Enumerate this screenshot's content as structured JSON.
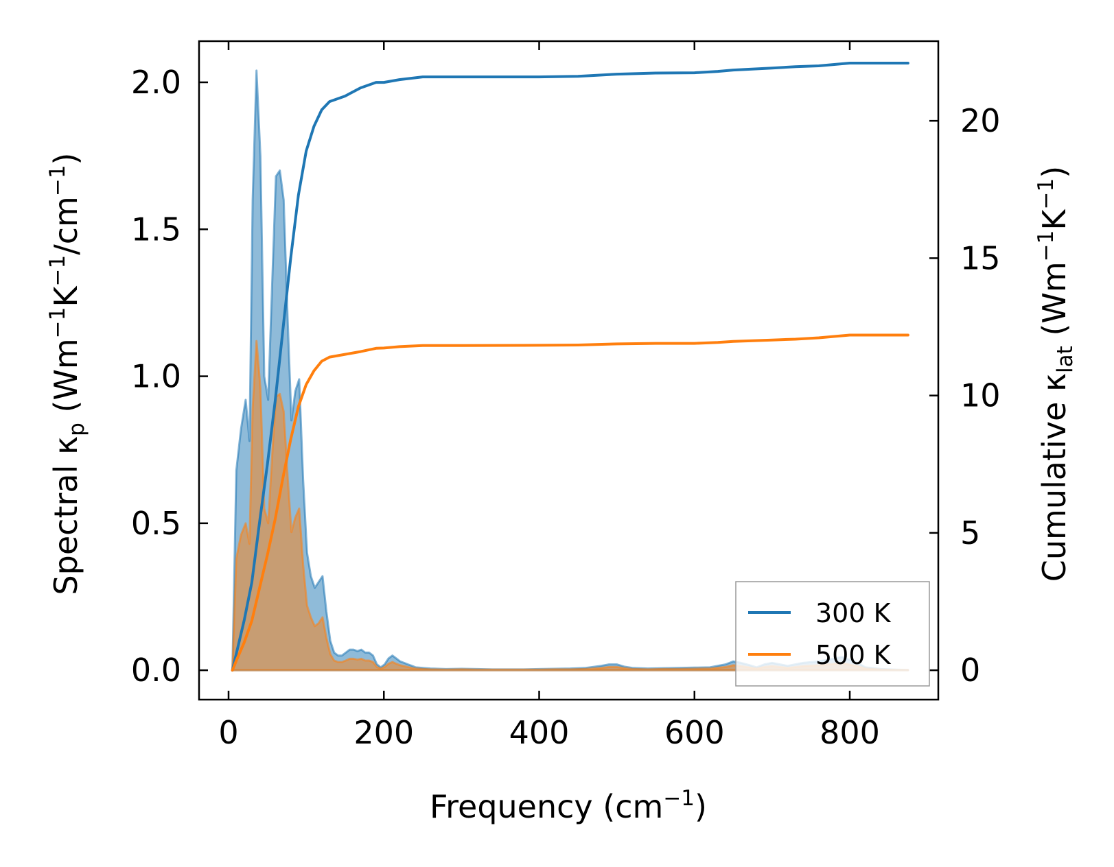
{
  "chart_data": {
    "type": "line",
    "xlabel": {
      "main": "Frequency (cm",
      "sup": "−1",
      "tail": ")"
    },
    "ylabel_left": {
      "prefix": "Spectral κ",
      "sub": "p",
      "rest": " (Wm",
      "sup1": "−1",
      "mid": "K",
      "sup2": "−1",
      "mid2": "/cm",
      "sup3": "−1",
      "tail": ")"
    },
    "ylabel_right": {
      "prefix": "Cumulative κ",
      "sub": "lat",
      "rest": " (Wm",
      "sup1": "−1",
      "mid": "K",
      "sup2": "−1",
      "tail": ")"
    },
    "xlim": [
      -38,
      914
    ],
    "ylim_left": [
      -0.1,
      2.14
    ],
    "ylim_right": [
      -1.07,
      22.9
    ],
    "x_ticks": [
      0,
      200,
      400,
      600,
      800
    ],
    "x_tick_labels": [
      "0",
      "200",
      "400",
      "600",
      "800"
    ],
    "y_left_ticks": [
      0.0,
      0.5,
      1.0,
      1.5,
      2.0
    ],
    "y_left_tick_labels": [
      "0.0",
      "0.5",
      "1.0",
      "1.5",
      "2.0"
    ],
    "y_right_ticks": [
      0,
      5,
      10,
      15,
      20
    ],
    "y_right_tick_labels": [
      "0",
      "5",
      "10",
      "15",
      "20"
    ],
    "legend": {
      "position": "lower-right",
      "entries": [
        "300 K",
        "500 K"
      ]
    },
    "colors": {
      "300 K": "#1f77b4",
      "500 K": "#ff7f0e"
    },
    "spectral": {
      "300 K": {
        "x": [
          5,
          10,
          16,
          22,
          27,
          31,
          36,
          41,
          46,
          51,
          56,
          61,
          66,
          71,
          76,
          81,
          86,
          91,
          96,
          101,
          106,
          111,
          116,
          121,
          126,
          131,
          136,
          141,
          146,
          151,
          156,
          161,
          166,
          171,
          176,
          181,
          186,
          191,
          196,
          201,
          206,
          211,
          216,
          221,
          226,
          231,
          236,
          241,
          250,
          260,
          280,
          300,
          320,
          340,
          360,
          380,
          400,
          420,
          440,
          460,
          480,
          490,
          500,
          510,
          520,
          540,
          560,
          580,
          600,
          620,
          640,
          650,
          660,
          670,
          680,
          690,
          700,
          710,
          720,
          740,
          760,
          780,
          790,
          800,
          810,
          820,
          840,
          860,
          875
        ],
        "y": [
          0.0,
          0.68,
          0.82,
          0.92,
          0.78,
          1.6,
          2.04,
          1.75,
          1.0,
          0.92,
          1.3,
          1.68,
          1.7,
          1.6,
          1.2,
          0.85,
          0.95,
          0.99,
          0.65,
          0.4,
          0.32,
          0.28,
          0.3,
          0.32,
          0.2,
          0.1,
          0.06,
          0.05,
          0.05,
          0.06,
          0.07,
          0.07,
          0.065,
          0.07,
          0.06,
          0.06,
          0.05,
          0.02,
          0.01,
          0.02,
          0.04,
          0.05,
          0.04,
          0.03,
          0.025,
          0.02,
          0.015,
          0.01,
          0.008,
          0.006,
          0.004,
          0.005,
          0.004,
          0.003,
          0.003,
          0.003,
          0.004,
          0.005,
          0.006,
          0.008,
          0.015,
          0.02,
          0.02,
          0.012,
          0.008,
          0.006,
          0.007,
          0.008,
          0.009,
          0.01,
          0.02,
          0.03,
          0.025,
          0.018,
          0.01,
          0.02,
          0.025,
          0.02,
          0.015,
          0.025,
          0.03,
          0.04,
          0.045,
          0.035,
          0.025,
          0.01,
          0.004,
          0.002,
          0.001
        ]
      },
      "500 K": {
        "x": [
          5,
          10,
          16,
          22,
          27,
          31,
          36,
          41,
          46,
          51,
          56,
          61,
          66,
          71,
          76,
          81,
          86,
          91,
          96,
          101,
          106,
          111,
          116,
          121,
          126,
          131,
          136,
          141,
          146,
          151,
          156,
          161,
          166,
          171,
          176,
          181,
          186,
          191,
          196,
          201,
          206,
          211,
          216,
          221,
          226,
          231,
          236,
          241,
          250,
          260,
          280,
          300,
          320,
          340,
          360,
          380,
          400,
          420,
          440,
          460,
          480,
          490,
          500,
          510,
          520,
          540,
          560,
          580,
          600,
          620,
          640,
          650,
          660,
          670,
          680,
          690,
          700,
          710,
          720,
          740,
          760,
          780,
          790,
          800,
          810,
          820,
          840,
          860,
          875
        ],
        "y": [
          0.0,
          0.38,
          0.46,
          0.5,
          0.43,
          0.89,
          1.12,
          0.96,
          0.55,
          0.5,
          0.72,
          0.93,
          0.94,
          0.88,
          0.66,
          0.47,
          0.52,
          0.55,
          0.36,
          0.22,
          0.18,
          0.15,
          0.16,
          0.18,
          0.11,
          0.055,
          0.033,
          0.028,
          0.028,
          0.033,
          0.039,
          0.039,
          0.036,
          0.039,
          0.033,
          0.033,
          0.028,
          0.011,
          0.006,
          0.011,
          0.022,
          0.028,
          0.022,
          0.017,
          0.014,
          0.011,
          0.008,
          0.006,
          0.004,
          0.003,
          0.002,
          0.003,
          0.002,
          0.002,
          0.002,
          0.002,
          0.002,
          0.003,
          0.003,
          0.004,
          0.008,
          0.011,
          0.011,
          0.007,
          0.004,
          0.003,
          0.004,
          0.004,
          0.005,
          0.006,
          0.011,
          0.017,
          0.014,
          0.01,
          0.006,
          0.011,
          0.014,
          0.011,
          0.008,
          0.014,
          0.017,
          0.022,
          0.025,
          0.019,
          0.014,
          0.006,
          0.002,
          0.001,
          0.001
        ]
      }
    },
    "cumulative": {
      "300 K": {
        "x": [
          5,
          10,
          20,
          30,
          40,
          50,
          60,
          70,
          80,
          90,
          100,
          110,
          120,
          130,
          150,
          170,
          190,
          200,
          220,
          250,
          300,
          400,
          450,
          500,
          550,
          600,
          630,
          650,
          700,
          730,
          760,
          780,
          800,
          875
        ],
        "y": [
          0,
          0.6,
          1.8,
          3.2,
          5.4,
          7.5,
          9.8,
          12.4,
          15.0,
          17.3,
          18.9,
          19.8,
          20.4,
          20.7,
          20.9,
          21.2,
          21.4,
          21.4,
          21.5,
          21.6,
          21.6,
          21.6,
          21.62,
          21.7,
          21.74,
          21.75,
          21.8,
          21.85,
          21.92,
          21.97,
          22.0,
          22.05,
          22.1,
          22.1
        ]
      },
      "500 K": {
        "x": [
          5,
          10,
          20,
          30,
          40,
          50,
          60,
          70,
          80,
          90,
          100,
          110,
          120,
          130,
          150,
          170,
          190,
          200,
          220,
          250,
          300,
          400,
          450,
          500,
          550,
          600,
          630,
          650,
          700,
          730,
          760,
          780,
          800,
          875
        ],
        "y": [
          0,
          0.35,
          1.0,
          1.8,
          3.0,
          4.2,
          5.5,
          7.0,
          8.4,
          9.6,
          10.4,
          10.9,
          11.25,
          11.4,
          11.5,
          11.6,
          11.72,
          11.73,
          11.78,
          11.82,
          11.82,
          11.83,
          11.84,
          11.88,
          11.9,
          11.9,
          11.93,
          11.97,
          12.02,
          12.05,
          12.1,
          12.15,
          12.2,
          12.2
        ]
      }
    }
  }
}
